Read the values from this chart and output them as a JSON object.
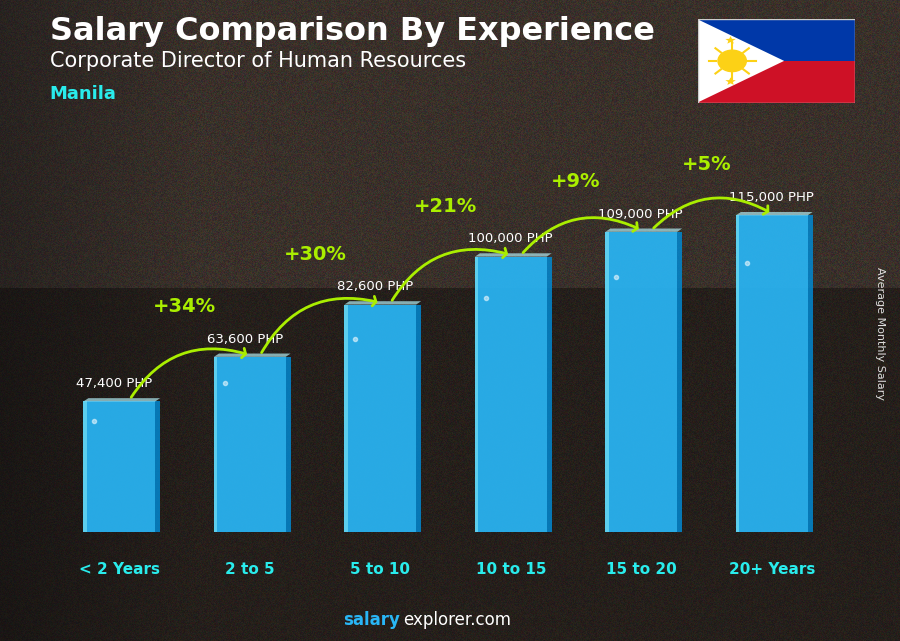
{
  "title_line1": "Salary Comparison By Experience",
  "title_line2": "Corporate Director of Human Resources",
  "city": "Manila",
  "categories": [
    "< 2 Years",
    "2 to 5",
    "5 to 10",
    "10 to 15",
    "15 to 20",
    "20+ Years"
  ],
  "values": [
    47400,
    63600,
    82600,
    100000,
    109000,
    115000
  ],
  "labels": [
    "47,400 PHP",
    "63,600 PHP",
    "82,600 PHP",
    "100,000 PHP",
    "109,000 PHP",
    "115,000 PHP"
  ],
  "pct_labels": [
    "+34%",
    "+30%",
    "+21%",
    "+9%",
    "+5%"
  ],
  "bar_color_main": "#29b6f6",
  "bar_color_left": "#4dd0e1",
  "bar_color_right": "#0288d1",
  "bar_color_top": "#b2ebf2",
  "pct_color": "#aaee00",
  "label_color": "#ffffff",
  "cat_color": "#29ecec",
  "background_color": "#2a2a2a",
  "ylabel": "Average Monthly Salary",
  "footer_bold": "salary",
  "footer_normal": "explorer.com",
  "ylim_max": 135000,
  "bar_width": 0.55
}
